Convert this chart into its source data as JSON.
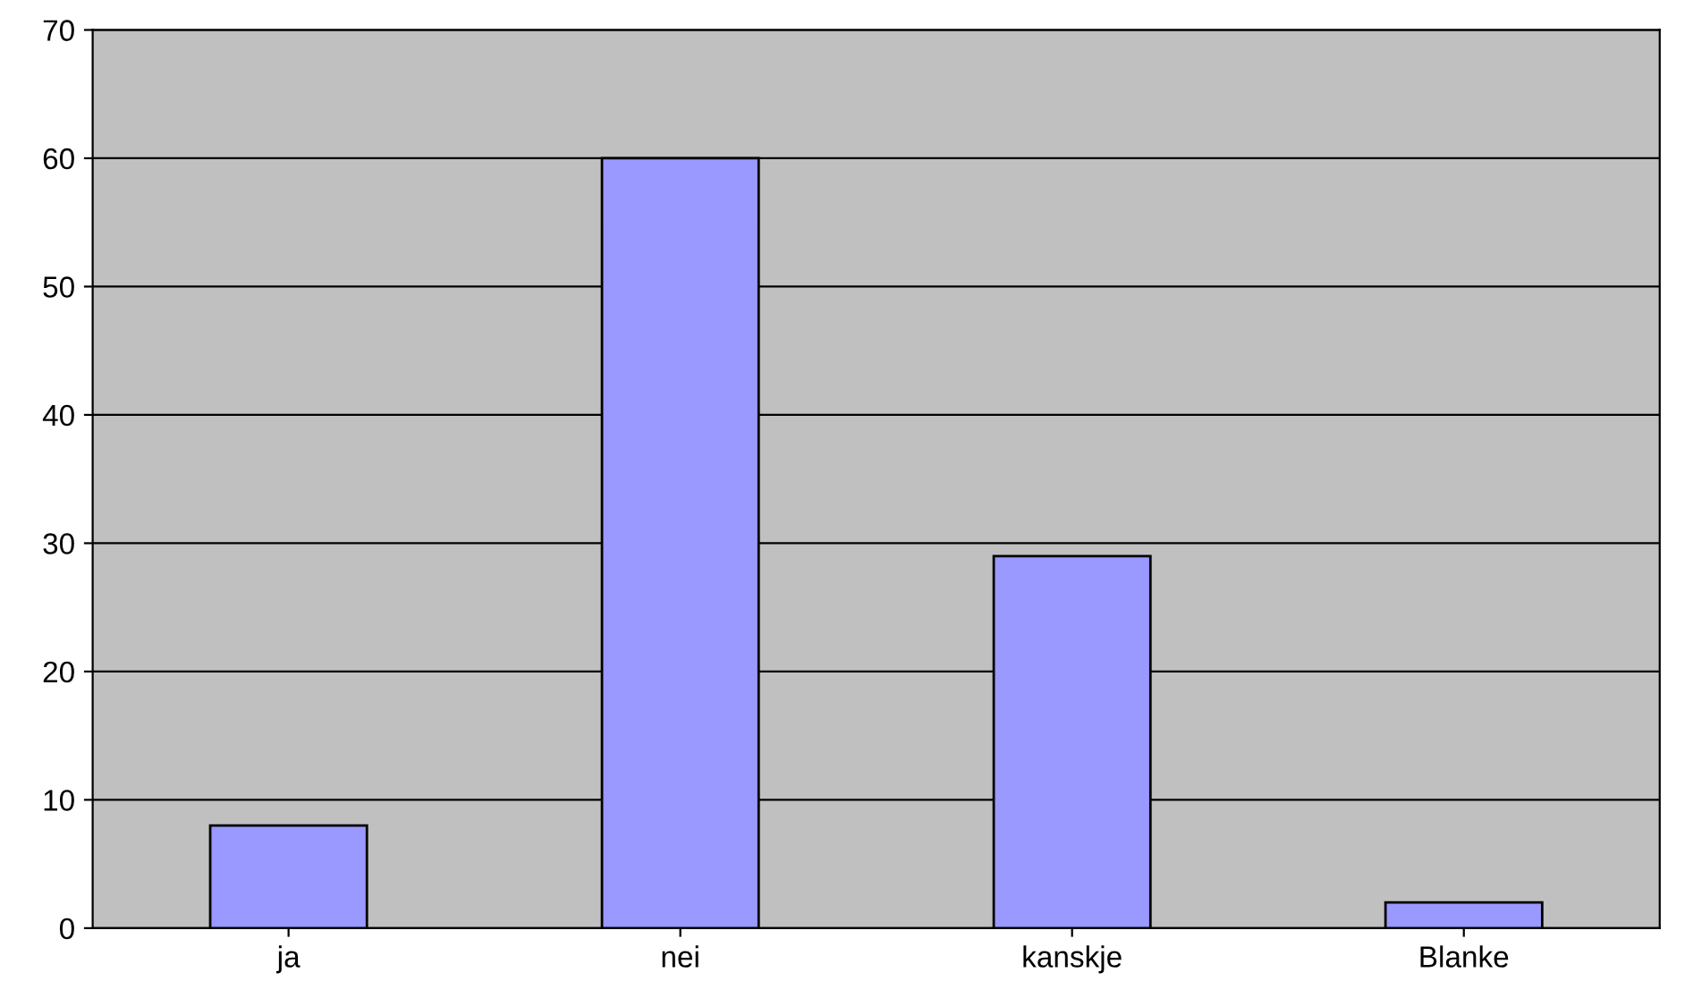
{
  "chart_data": {
    "type": "bar",
    "categories": [
      "ja",
      "nei",
      "kanskje",
      "Blanke"
    ],
    "values": [
      8,
      60,
      29,
      2
    ],
    "color": "#9999ff",
    "ylim": [
      0,
      70
    ],
    "yticks": [
      0,
      10,
      20,
      30,
      40,
      50,
      60,
      70
    ],
    "grid": "y"
  }
}
